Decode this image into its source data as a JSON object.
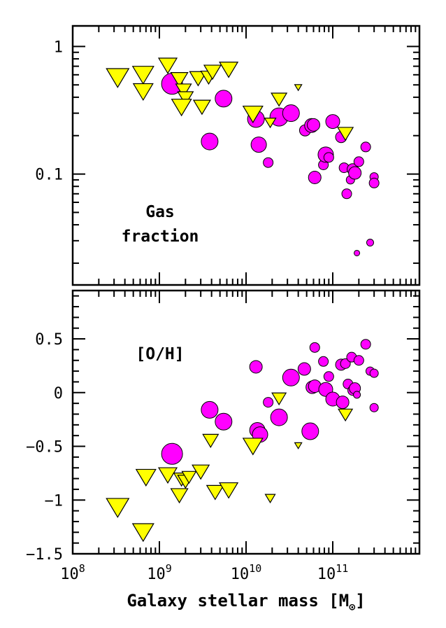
{
  "chart_data": [
    {
      "type": "scatter",
      "panel": "top",
      "annotation": [
        "Gas",
        "fraction"
      ],
      "xscale": "log",
      "yscale": "log",
      "xlim": [
        100000000,
        1000000000000
      ],
      "ylim": [
        0.0135,
        1.45
      ],
      "yticks": [
        {
          "value": 1,
          "label": "1"
        },
        {
          "value": 0.1,
          "label": "0.1"
        }
      ],
      "series": [
        {
          "marker": "circle",
          "color": "#ff00ff",
          "points": [
            {
              "x": 1400000000,
              "y": 0.51,
              "size": 15
            },
            {
              "x": 3800000000,
              "y": 0.18,
              "size": 12
            },
            {
              "x": 5500000000,
              "y": 0.39,
              "size": 12
            },
            {
              "x": 13000000000,
              "y": 0.27,
              "size": 12
            },
            {
              "x": 14000000000,
              "y": 0.17,
              "size": 11
            },
            {
              "x": 18000000000,
              "y": 0.123,
              "size": 7
            },
            {
              "x": 24000000000,
              "y": 0.28,
              "size": 13
            },
            {
              "x": 33000000000,
              "y": 0.3,
              "size": 12
            },
            {
              "x": 48000000000,
              "y": 0.22,
              "size": 8
            },
            {
              "x": 57000000000,
              "y": 0.24,
              "size": 10
            },
            {
              "x": 60000000000,
              "y": 0.243,
              "size": 9
            },
            {
              "x": 62000000000,
              "y": 0.094,
              "size": 9
            },
            {
              "x": 78000000000,
              "y": 0.118,
              "size": 7
            },
            {
              "x": 83000000000,
              "y": 0.142,
              "size": 11
            },
            {
              "x": 90000000000,
              "y": 0.135,
              "size": 7
            },
            {
              "x": 100000000000,
              "y": 0.258,
              "size": 10
            },
            {
              "x": 125000000000,
              "y": 0.195,
              "size": 8
            },
            {
              "x": 135000000000,
              "y": 0.112,
              "size": 7
            },
            {
              "x": 145000000000,
              "y": 0.07,
              "size": 7
            },
            {
              "x": 160000000000,
              "y": 0.09,
              "size": 6
            },
            {
              "x": 170000000000,
              "y": 0.109,
              "size": 8
            },
            {
              "x": 180000000000,
              "y": 0.102,
              "size": 9
            },
            {
              "x": 200000000000,
              "y": 0.125,
              "size": 7
            },
            {
              "x": 240000000000,
              "y": 0.163,
              "size": 7
            },
            {
              "x": 190000000000,
              "y": 0.024,
              "size": 4
            },
            {
              "x": 270000000000,
              "y": 0.029,
              "size": 5
            },
            {
              "x": 300000000000,
              "y": 0.095,
              "size": 6
            },
            {
              "x": 300000000000,
              "y": 0.085,
              "size": 7
            }
          ]
        },
        {
          "marker": "triangle-down",
          "color": "#ffff00",
          "points": [
            {
              "x": 330000000,
              "y": 0.58,
              "size": 16
            },
            {
              "x": 650000000,
              "y": 0.61,
              "size": 15
            },
            {
              "x": 650000000,
              "y": 0.45,
              "size": 14
            },
            {
              "x": 1250000000,
              "y": 0.72,
              "size": 13
            },
            {
              "x": 1700000000,
              "y": 0.56,
              "size": 12
            },
            {
              "x": 1900000000,
              "y": 0.46,
              "size": 11
            },
            {
              "x": 2000000000,
              "y": 0.4,
              "size": 11
            },
            {
              "x": 1800000000,
              "y": 0.34,
              "size": 14
            },
            {
              "x": 2800000000,
              "y": 0.57,
              "size": 12
            },
            {
              "x": 3100000000,
              "y": 0.34,
              "size": 12
            },
            {
              "x": 3700000000,
              "y": 0.58,
              "size": 11
            },
            {
              "x": 4100000000,
              "y": 0.64,
              "size": 12
            },
            {
              "x": 6300000000,
              "y": 0.67,
              "size": 13
            },
            {
              "x": 12000000000,
              "y": 0.3,
              "size": 14
            },
            {
              "x": 19000000000,
              "y": 0.255,
              "size": 8
            },
            {
              "x": 24000000000,
              "y": 0.39,
              "size": 11
            },
            {
              "x": 40000000000,
              "y": 0.48,
              "size": 5
            },
            {
              "x": 140000000000,
              "y": 0.21,
              "size": 11
            }
          ]
        }
      ]
    },
    {
      "type": "scatter",
      "panel": "bottom",
      "annotation": [
        "[O/H]"
      ],
      "xscale": "log",
      "yscale": "linear",
      "xlim": [
        100000000,
        1000000000000
      ],
      "ylim": [
        -1.5,
        0.95
      ],
      "xticks": [
        {
          "value": 100000000,
          "base": "10",
          "exp": "8"
        },
        {
          "value": 1000000000,
          "base": "10",
          "exp": "9"
        },
        {
          "value": 10000000000,
          "base": "10",
          "exp": "10"
        },
        {
          "value": 100000000000,
          "base": "10",
          "exp": "11"
        }
      ],
      "yticks": [
        {
          "value": 0.5,
          "label": "0.5"
        },
        {
          "value": 0,
          "label": "0"
        },
        {
          "value": -0.5,
          "label": "−0.5"
        },
        {
          "value": -1,
          "label": "−1"
        },
        {
          "value": -1.5,
          "label": "−1.5"
        }
      ],
      "xlabel": {
        "text": "Galaxy stellar mass [M",
        "sub": "⊙",
        "close": "]"
      },
      "series": [
        {
          "marker": "circle",
          "color": "#ff00ff",
          "points": [
            {
              "x": 1400000000,
              "y": -0.57,
              "size": 15
            },
            {
              "x": 3800000000,
              "y": -0.16,
              "size": 12
            },
            {
              "x": 5500000000,
              "y": -0.27,
              "size": 12
            },
            {
              "x": 13000000000,
              "y": 0.24,
              "size": 9
            },
            {
              "x": 13500000000,
              "y": -0.35,
              "size": 11
            },
            {
              "x": 14500000000,
              "y": -0.39,
              "size": 11
            },
            {
              "x": 18000000000,
              "y": -0.09,
              "size": 7
            },
            {
              "x": 24000000000,
              "y": -0.23,
              "size": 12
            },
            {
              "x": 33000000000,
              "y": 0.14,
              "size": 12
            },
            {
              "x": 47000000000,
              "y": 0.22,
              "size": 9
            },
            {
              "x": 55000000000,
              "y": -0.36,
              "size": 12
            },
            {
              "x": 58000000000,
              "y": 0.05,
              "size": 9
            },
            {
              "x": 62000000000,
              "y": 0.06,
              "size": 9
            },
            {
              "x": 62000000000,
              "y": 0.42,
              "size": 7
            },
            {
              "x": 78000000000,
              "y": 0.29,
              "size": 7
            },
            {
              "x": 83000000000,
              "y": 0.03,
              "size": 10
            },
            {
              "x": 90000000000,
              "y": 0.15,
              "size": 7
            },
            {
              "x": 100000000000,
              "y": -0.06,
              "size": 10
            },
            {
              "x": 125000000000,
              "y": 0.26,
              "size": 8
            },
            {
              "x": 130000000000,
              "y": -0.09,
              "size": 9
            },
            {
              "x": 140000000000,
              "y": 0.27,
              "size": 7
            },
            {
              "x": 150000000000,
              "y": 0.08,
              "size": 7
            },
            {
              "x": 165000000000,
              "y": 0.33,
              "size": 7
            },
            {
              "x": 170000000000,
              "y": 0.02,
              "size": 7
            },
            {
              "x": 180000000000,
              "y": 0.04,
              "size": 8
            },
            {
              "x": 190000000000,
              "y": -0.02,
              "size": 5
            },
            {
              "x": 200000000000,
              "y": 0.3,
              "size": 7
            },
            {
              "x": 240000000000,
              "y": 0.45,
              "size": 7
            },
            {
              "x": 270000000000,
              "y": 0.2,
              "size": 6
            },
            {
              "x": 300000000000,
              "y": 0.18,
              "size": 6
            },
            {
              "x": 300000000000,
              "y": -0.14,
              "size": 6
            }
          ]
        },
        {
          "marker": "triangle-down",
          "color": "#ffff00",
          "points": [
            {
              "x": 330000000,
              "y": -1.06,
              "size": 16
            },
            {
              "x": 650000000,
              "y": -1.29,
              "size": 15
            },
            {
              "x": 700000000,
              "y": -0.78,
              "size": 14
            },
            {
              "x": 1250000000,
              "y": -0.76,
              "size": 13
            },
            {
              "x": 1800000000,
              "y": -0.8,
              "size": 11
            },
            {
              "x": 1700000000,
              "y": -0.95,
              "size": 12
            },
            {
              "x": 2000000000,
              "y": -0.82,
              "size": 11
            },
            {
              "x": 2200000000,
              "y": -0.78,
              "size": 10
            },
            {
              "x": 3000000000,
              "y": -0.73,
              "size": 12
            },
            {
              "x": 3900000000,
              "y": -0.44,
              "size": 11
            },
            {
              "x": 4400000000,
              "y": -0.92,
              "size": 12
            },
            {
              "x": 6300000000,
              "y": -0.9,
              "size": 13
            },
            {
              "x": 12000000000,
              "y": -0.49,
              "size": 14
            },
            {
              "x": 19000000000,
              "y": -0.98,
              "size": 7
            },
            {
              "x": 24000000000,
              "y": -0.05,
              "size": 10
            },
            {
              "x": 40000000000,
              "y": -0.49,
              "size": 5
            },
            {
              "x": 140000000000,
              "y": -0.2,
              "size": 10
            }
          ]
        }
      ]
    }
  ]
}
